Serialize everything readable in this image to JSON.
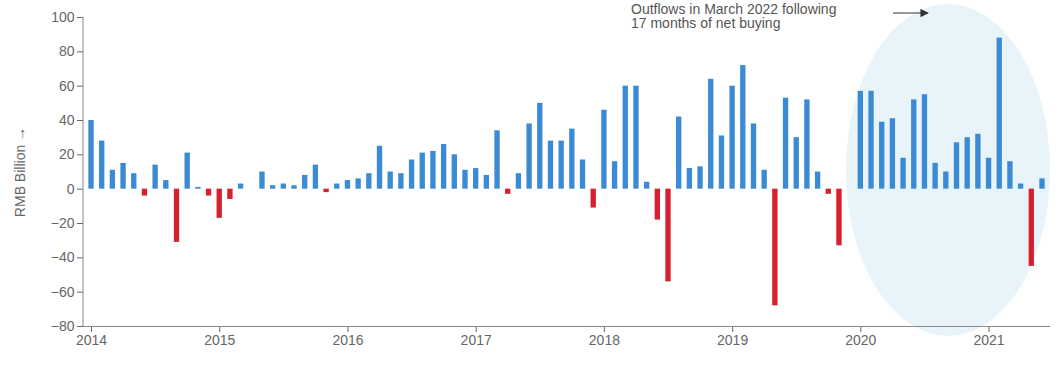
{
  "chart_data": {
    "type": "bar",
    "y_label": "RMB Billion",
    "annotation": "Outflows in March 2022 following\n17 months of net buying",
    "categories": [
      "2014",
      null,
      null,
      null,
      null,
      null,
      null,
      null,
      null,
      null,
      null,
      null,
      "2015",
      null,
      null,
      null,
      null,
      null,
      null,
      null,
      null,
      null,
      null,
      null,
      "2016",
      null,
      null,
      null,
      null,
      null,
      null,
      null,
      null,
      null,
      null,
      null,
      "2017",
      null,
      null,
      null,
      null,
      null,
      null,
      null,
      null,
      null,
      null,
      null,
      "2018",
      null,
      null,
      null,
      null,
      null,
      null,
      null,
      null,
      null,
      null,
      null,
      "2019",
      null,
      null,
      null,
      null,
      null,
      null,
      null,
      null,
      null,
      null,
      null,
      "2020",
      null,
      null,
      null,
      null,
      null,
      null,
      null,
      null,
      null,
      null,
      null,
      "2021",
      null,
      null,
      null,
      null,
      null
    ],
    "values": [
      40,
      28,
      11,
      15,
      9,
      -4,
      14,
      5,
      -31,
      21,
      1,
      -4,
      -17,
      -6,
      3,
      0,
      10,
      2,
      3,
      2,
      8,
      14,
      -2,
      3,
      5,
      6,
      9,
      25,
      10,
      9,
      17,
      21,
      22,
      26,
      20,
      11,
      12,
      8,
      34,
      -3,
      9,
      38,
      50,
      28,
      28,
      35,
      17,
      -11,
      46,
      16,
      60,
      60,
      4,
      -18,
      -54,
      42,
      12,
      13,
      64,
      31,
      60,
      72,
      38,
      11,
      -68,
      53,
      30,
      52,
      10,
      -3,
      -33,
      0,
      57,
      57,
      39,
      41,
      18,
      52,
      55,
      15,
      10,
      27,
      30,
      32,
      18,
      88,
      16,
      3,
      -45,
      6
    ],
    "colors": [
      "#3b8bd4",
      "#3b8bd4",
      "#3b8bd4",
      "#3b8bd4",
      "#3b8bd4",
      "#d6202f",
      "#3b8bd4",
      "#3b8bd4",
      "#d6202f",
      "#3b8bd4",
      "#3b8bd4",
      "#d6202f",
      "#d6202f",
      "#d6202f",
      "#3b8bd4",
      "#3b8bd4",
      "#3b8bd4",
      "#3b8bd4",
      "#3b8bd4",
      "#3b8bd4",
      "#3b8bd4",
      "#3b8bd4",
      "#d6202f",
      "#3b8bd4",
      "#3b8bd4",
      "#3b8bd4",
      "#3b8bd4",
      "#3b8bd4",
      "#3b8bd4",
      "#3b8bd4",
      "#3b8bd4",
      "#3b8bd4",
      "#3b8bd4",
      "#3b8bd4",
      "#3b8bd4",
      "#3b8bd4",
      "#3b8bd4",
      "#3b8bd4",
      "#3b8bd4",
      "#d6202f",
      "#3b8bd4",
      "#3b8bd4",
      "#3b8bd4",
      "#3b8bd4",
      "#3b8bd4",
      "#3b8bd4",
      "#3b8bd4",
      "#d6202f",
      "#3b8bd4",
      "#3b8bd4",
      "#3b8bd4",
      "#3b8bd4",
      "#3b8bd4",
      "#d6202f",
      "#d6202f",
      "#3b8bd4",
      "#3b8bd4",
      "#3b8bd4",
      "#3b8bd4",
      "#3b8bd4",
      "#3b8bd4",
      "#3b8bd4",
      "#3b8bd4",
      "#3b8bd4",
      "#d6202f",
      "#3b8bd4",
      "#3b8bd4",
      "#3b8bd4",
      "#3b8bd4",
      "#d6202f",
      "#d6202f",
      "#3b8bd4",
      "#3b8bd4",
      "#3b8bd4",
      "#3b8bd4",
      "#3b8bd4",
      "#3b8bd4",
      "#3b8bd4",
      "#3b8bd4",
      "#3b8bd4",
      "#3b8bd4",
      "#3b8bd4",
      "#3b8bd4",
      "#3b8bd4",
      "#3b8bd4",
      "#3b8bd4",
      "#3b8bd4",
      "#3b8bd4",
      "#d6202f",
      "#3b8bd4"
    ],
    "ylim": [
      -80,
      100
    ],
    "yticks": [
      -80,
      -60,
      -40,
      -20,
      0,
      20,
      40,
      60,
      80,
      100
    ]
  }
}
